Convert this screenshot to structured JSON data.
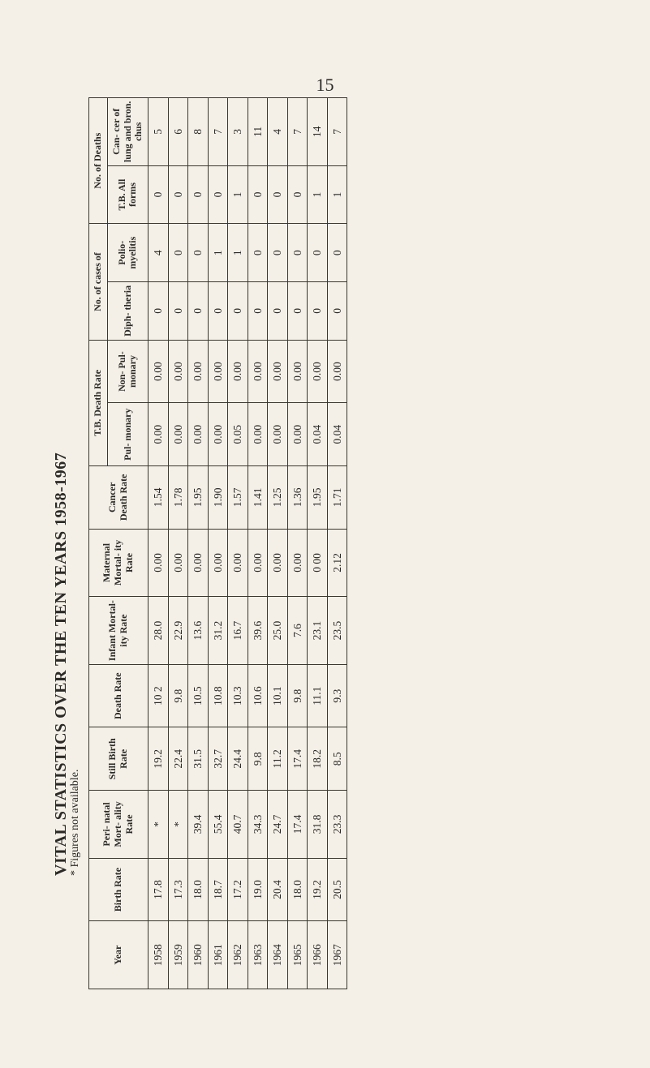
{
  "page_number": "15",
  "title": "VITAL STATISTICS OVER THE TEN YEARS 1958-1967",
  "footnote": "* Figures not available.",
  "columns": {
    "year": "Year",
    "birth_rate": "Birth Rate",
    "perinatal": "Peri- natal Mort- ality Rate",
    "still_birth": "Still Birth Rate",
    "death_rate": "Death Rate",
    "infant": "Infant Mortal- ity Rate",
    "maternal": "Maternal Mortal- ity Rate",
    "cancer": "Cancer Death Rate",
    "tb_group": "T.B. Death Rate",
    "tb_pul": "Pul- monary",
    "tb_nonpul": "Non- Pul- monary",
    "cases_group": "No. of cases of",
    "diph": "Diph- theria",
    "polio": "Polio- myelitis",
    "deaths_group": "No. of Deaths",
    "tb_all": "T.B. All forms",
    "can_deaths": "Can- cer of lung and bron. chus"
  },
  "rows": [
    {
      "year": "1958",
      "birth": "17.8",
      "peri": "*",
      "still": "19.2",
      "death": "10 2",
      "infant": "28.0",
      "mat": "0.00",
      "cancer": "1.54",
      "tb_pul": "0.00",
      "tb_non": "0.00",
      "diph": "0",
      "polio": "4",
      "tb_all": "0",
      "can": "5"
    },
    {
      "year": "1959",
      "birth": "17.3",
      "peri": "*",
      "still": "22.4",
      "death": "9.8",
      "infant": "22.9",
      "mat": "0.00",
      "cancer": "1.78",
      "tb_pul": "0.00",
      "tb_non": "0.00",
      "diph": "0",
      "polio": "0",
      "tb_all": "0",
      "can": "6"
    },
    {
      "year": "1960",
      "birth": "18.0",
      "peri": "39.4",
      "still": "31.5",
      "death": "10.5",
      "infant": "13.6",
      "mat": "0.00",
      "cancer": "1.95",
      "tb_pul": "0.00",
      "tb_non": "0.00",
      "diph": "0",
      "polio": "0",
      "tb_all": "0",
      "can": "8"
    },
    {
      "year": "1961",
      "birth": "18.7",
      "peri": "55.4",
      "still": "32.7",
      "death": "10.8",
      "infant": "31.2",
      "mat": "0.00",
      "cancer": "1.90",
      "tb_pul": "0.00",
      "tb_non": "0.00",
      "diph": "0",
      "polio": "1",
      "tb_all": "0",
      "can": "7"
    },
    {
      "year": "1962",
      "birth": "17.2",
      "peri": "40.7",
      "still": "24.4",
      "death": "10.3",
      "infant": "16.7",
      "mat": "0.00",
      "cancer": "1.57",
      "tb_pul": "0.05",
      "tb_non": "0.00",
      "diph": "0",
      "polio": "1",
      "tb_all": "1",
      "can": "3"
    },
    {
      "year": "1963",
      "birth": "19.0",
      "peri": "34.3",
      "still": "9.8",
      "death": "10.6",
      "infant": "39.6",
      "mat": "0.00",
      "cancer": "1.41",
      "tb_pul": "0.00",
      "tb_non": "0.00",
      "diph": "0",
      "polio": "0",
      "tb_all": "0",
      "can": "11"
    },
    {
      "year": "1964",
      "birth": "20.4",
      "peri": "24.7",
      "still": "11.2",
      "death": "10.1",
      "infant": "25.0",
      "mat": "0.00",
      "cancer": "1.25",
      "tb_pul": "0.00",
      "tb_non": "0.00",
      "diph": "0",
      "polio": "0",
      "tb_all": "0",
      "can": "4"
    },
    {
      "year": "1965",
      "birth": "18.0",
      "peri": "17.4",
      "still": "17.4",
      "death": "9.8",
      "infant": "7.6",
      "mat": "0.00",
      "cancer": "1.36",
      "tb_pul": "0.00",
      "tb_non": "0.00",
      "diph": "0",
      "polio": "0",
      "tb_all": "0",
      "can": "7"
    },
    {
      "year": "1966",
      "birth": "19.2",
      "peri": "31.8",
      "still": "18.2",
      "death": "11.1",
      "infant": "23.1",
      "mat": "0 00",
      "cancer": "1.95",
      "tb_pul": "0.04",
      "tb_non": "0.00",
      "diph": "0",
      "polio": "0",
      "tb_all": "1",
      "can": "14"
    },
    {
      "year": "1967",
      "birth": "20.5",
      "peri": "23.3",
      "still": "8.5",
      "death": "9.3",
      "infant": "23.5",
      "mat": "2.12",
      "cancer": "1.71",
      "tb_pul": "0.04",
      "tb_non": "0.00",
      "diph": "0",
      "polio": "0",
      "tb_all": "1",
      "can": "7"
    }
  ]
}
